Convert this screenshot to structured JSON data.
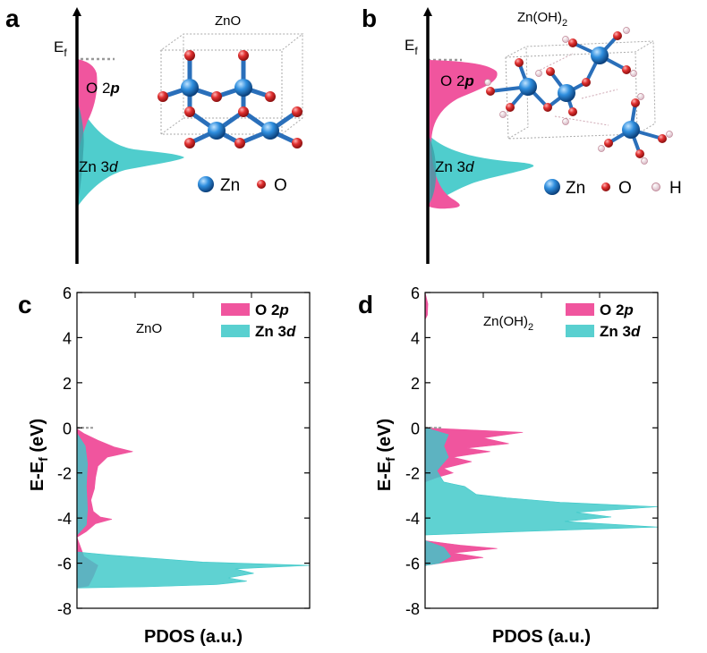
{
  "panels": {
    "a": {
      "letter": "a",
      "title": "ZnO",
      "ef": "E",
      "ef_sub": "f",
      "o_label_pre": "O 2",
      "o_label_it": "p",
      "zn_label_pre": "Zn 3",
      "zn_label_it": "d",
      "legend": [
        {
          "symbol": "Zn",
          "name": "Zn"
        },
        {
          "symbol": "O",
          "name": "O"
        }
      ]
    },
    "b": {
      "letter": "b",
      "title_pre": "Zn(OH)",
      "title_sub": "2",
      "ef": "E",
      "ef_sub": "f",
      "o_label_pre": "O 2",
      "o_label_it": "p",
      "zn_label_pre": "Zn 3",
      "zn_label_it": "d",
      "legend": [
        {
          "symbol": "Zn",
          "name": "Zn"
        },
        {
          "symbol": "O",
          "name": "O"
        },
        {
          "symbol": "H",
          "name": "H"
        }
      ]
    }
  },
  "colors": {
    "o2p": "#f0559e",
    "zn3d": "#3cc8c8",
    "zn_atom": "#1f78c8",
    "o_atom": "#d02828",
    "h_atom": "#f4e4ea"
  },
  "chart_data": [
    {
      "type": "area",
      "panel": "c",
      "title": "ZnO",
      "ylabel_pre": "E-E",
      "ylabel_sub": "f",
      "ylabel_post": " (eV)",
      "xlabel": "PDOS (a.u.)",
      "ylim": [
        -8,
        6
      ],
      "yticks": [
        6,
        4,
        2,
        0,
        -2,
        -4,
        -6,
        -8
      ],
      "xlim": [
        0,
        10
      ],
      "legend_position": "top-right",
      "series": [
        {
          "name": "O 2p",
          "name_pre": "O 2",
          "name_it": "p",
          "color": "#f0559e",
          "points": [
            [
              0,
              -0.05
            ],
            [
              0.3,
              -0.25
            ],
            [
              0.9,
              -0.55
            ],
            [
              1.6,
              -0.85
            ],
            [
              2.4,
              -1.05
            ],
            [
              1.3,
              -1.3
            ],
            [
              0.9,
              -1.7
            ],
            [
              0.8,
              -2.2
            ],
            [
              0.75,
              -2.7
            ],
            [
              0.6,
              -3.2
            ],
            [
              0.7,
              -3.7
            ],
            [
              1.0,
              -3.95
            ],
            [
              1.5,
              -4.05
            ],
            [
              0.8,
              -4.25
            ],
            [
              0.4,
              -4.6
            ],
            [
              0,
              -4.85
            ],
            [
              0.3,
              -5.7
            ],
            [
              0.9,
              -6.1
            ],
            [
              0.7,
              -6.6
            ],
            [
              0.5,
              -7.0
            ],
            [
              0,
              -7.1
            ]
          ]
        },
        {
          "name": "Zn 3d",
          "name_pre": "Zn 3",
          "name_it": "d",
          "color": "#3cc8c8",
          "points": [
            [
              0,
              -0.25
            ],
            [
              0.35,
              -0.8
            ],
            [
              0.45,
              -1.6
            ],
            [
              0.4,
              -2.6
            ],
            [
              0.45,
              -3.6
            ],
            [
              0.4,
              -4.3
            ],
            [
              0,
              -4.75
            ],
            [
              0,
              -5.5
            ],
            [
              1.5,
              -5.65
            ],
            [
              5.4,
              -5.95
            ],
            [
              10,
              -6.1
            ],
            [
              6.8,
              -6.25
            ],
            [
              7.6,
              -6.45
            ],
            [
              6.5,
              -6.65
            ],
            [
              7.3,
              -6.8
            ],
            [
              6.0,
              -6.95
            ],
            [
              3.0,
              -7.05
            ],
            [
              0,
              -7.1
            ]
          ]
        }
      ]
    },
    {
      "type": "area",
      "panel": "d",
      "title_pre": "Zn(OH)",
      "title_sub": "2",
      "ylabel_pre": "E-E",
      "ylabel_sub": "f",
      "ylabel_post": " (eV)",
      "xlabel": "PDOS (a.u.)",
      "ylim": [
        -8,
        6
      ],
      "yticks": [
        6,
        4,
        2,
        0,
        -2,
        -4,
        -6,
        -8
      ],
      "xlim": [
        0,
        10
      ],
      "legend_position": "top-right",
      "series": [
        {
          "name": "O 2p",
          "name_pre": "O 2",
          "name_it": "p",
          "color": "#f0559e",
          "points": [
            [
              0,
              6.0
            ],
            [
              0.12,
              5.5
            ],
            [
              0.1,
              5.0
            ],
            [
              0,
              4.8
            ],
            [
              0,
              0
            ],
            [
              4.2,
              -0.2
            ],
            [
              2.5,
              -0.45
            ],
            [
              3.6,
              -0.7
            ],
            [
              1.8,
              -0.9
            ],
            [
              2.8,
              -1.05
            ],
            [
              1.2,
              -1.3
            ],
            [
              2.0,
              -1.5
            ],
            [
              0.8,
              -1.8
            ],
            [
              1.2,
              -2.0
            ],
            [
              0.5,
              -2.2
            ],
            [
              0,
              -2.4
            ],
            [
              0,
              -5.0
            ],
            [
              1.5,
              -5.2
            ],
            [
              3.1,
              -5.35
            ],
            [
              1.2,
              -5.55
            ],
            [
              2.5,
              -5.75
            ],
            [
              1.0,
              -5.95
            ],
            [
              0,
              -6.1
            ]
          ]
        },
        {
          "name": "Zn 3d",
          "name_pre": "Zn 3",
          "name_it": "d",
          "color": "#3cc8c8",
          "points": [
            [
              0,
              0
            ],
            [
              1.0,
              -0.3
            ],
            [
              0.8,
              -0.8
            ],
            [
              1.0,
              -1.3
            ],
            [
              0.5,
              -1.9
            ],
            [
              0.8,
              -2.4
            ],
            [
              1.7,
              -2.6
            ],
            [
              2.2,
              -2.95
            ],
            [
              3.5,
              -3.1
            ],
            [
              5.8,
              -3.3
            ],
            [
              10,
              -3.5
            ],
            [
              6.5,
              -3.75
            ],
            [
              8.0,
              -3.95
            ],
            [
              6.0,
              -4.15
            ],
            [
              10,
              -4.4
            ],
            [
              4.0,
              -4.6
            ],
            [
              0,
              -4.75
            ],
            [
              0,
              -5.0
            ],
            [
              0.8,
              -5.3
            ],
            [
              1.1,
              -5.7
            ],
            [
              0.6,
              -6.0
            ],
            [
              0,
              -6.1
            ]
          ]
        }
      ]
    }
  ]
}
